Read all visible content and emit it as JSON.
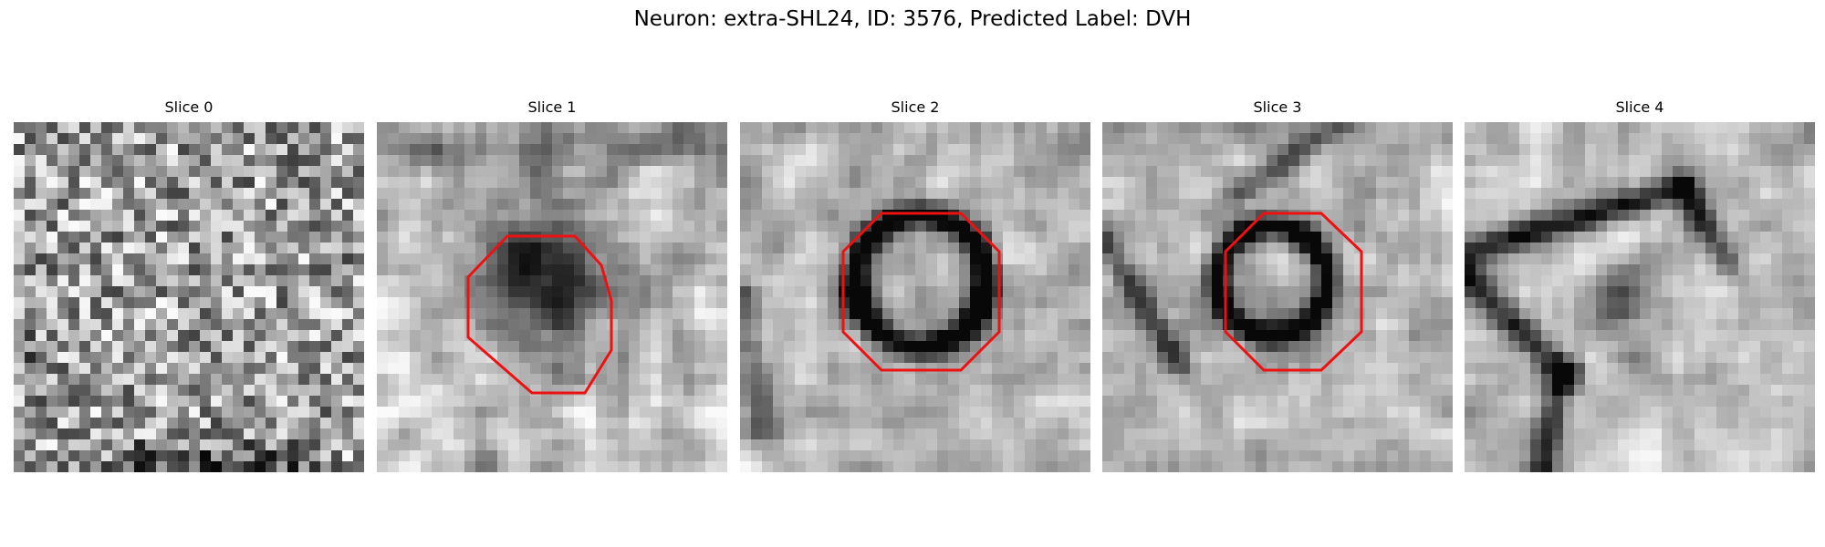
{
  "figure": {
    "title": "Neuron: extra-SHL24, ID: 3576, Predicted Label: DVH"
  },
  "panels": [
    {
      "title": "Slice 0",
      "contour": false
    },
    {
      "title": "Slice 1",
      "contour": true
    },
    {
      "title": "Slice 2",
      "contour": true
    },
    {
      "title": "Slice 3",
      "contour": true
    },
    {
      "title": "Slice 4",
      "contour": false
    }
  ],
  "colors": {
    "contour": "#ee1111",
    "background": "#ffffff"
  }
}
